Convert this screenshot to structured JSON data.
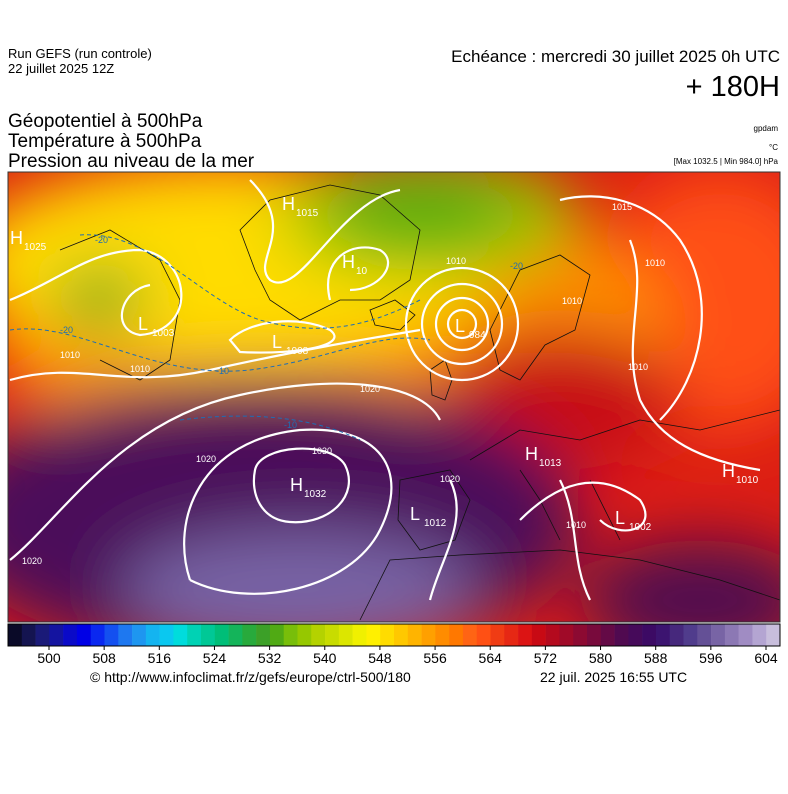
{
  "header": {
    "run": "Run GEFS (run controle)",
    "run_date": "22 juillet 2025 12Z",
    "valid": "Echéance : mercredi 30 juillet 2025 0h UTC",
    "lead": "+ 180H"
  },
  "fields": {
    "geopotential": "Géopotentiel à 500hPa",
    "temperature": "Température à 500hPa",
    "pressure": "Pression au niveau de la mer",
    "unit_geo": "gpdam",
    "unit_temp": "°C",
    "pressure_range": "[Max 1032.5 | Min 984.0] hPa"
  },
  "map": {
    "systems": [
      {
        "kind": "H",
        "value": "1015"
      },
      {
        "kind": "H",
        "value": "1025"
      },
      {
        "kind": "L",
        "value": "1003"
      },
      {
        "kind": "L",
        "value": "1008"
      },
      {
        "kind": "H",
        "value": "10"
      },
      {
        "kind": "L",
        "value": "984"
      },
      {
        "kind": "H",
        "value": "1032"
      },
      {
        "kind": "L",
        "value": "1012"
      },
      {
        "kind": "H",
        "value": "1013"
      },
      {
        "kind": "H",
        "value": "1010"
      },
      {
        "kind": "L",
        "value": "1002"
      }
    ],
    "isobar_labels": [
      "1010",
      "1020",
      "1010",
      "1010",
      "1020",
      "1030",
      "1020",
      "1020",
      "1010",
      "1010",
      "1010",
      "1010",
      "1015"
    ],
    "temperature_labels": [
      "-20",
      "-20",
      "-20",
      "-10",
      "-10"
    ]
  },
  "colorbar": {
    "ticks": [
      500,
      508,
      516,
      524,
      532,
      540,
      548,
      556,
      564,
      572,
      580,
      588,
      596,
      604
    ],
    "colors": [
      "#0a0a28",
      "#141450",
      "#1a1a78",
      "#1414a0",
      "#0a0ac8",
      "#0000e6",
      "#0a28f0",
      "#1450f0",
      "#1e78f0",
      "#1e96f0",
      "#14b4f0",
      "#0ac8f0",
      "#00dcdc",
      "#00d2b4",
      "#00c896",
      "#00be78",
      "#14b45a",
      "#28aa3c",
      "#3ca028",
      "#50aa14",
      "#78be0a",
      "#96c800",
      "#b4d200",
      "#c8dc00",
      "#dce600",
      "#f0f000",
      "#fff000",
      "#ffdc00",
      "#ffc800",
      "#ffb400",
      "#ffa000",
      "#ff8c00",
      "#ff7800",
      "#ff6414",
      "#ff5014",
      "#f03c14",
      "#e62814",
      "#dc1414",
      "#c80a14",
      "#b40a1e",
      "#a00a28",
      "#8c0a32",
      "#780a3c",
      "#640a46",
      "#500a50",
      "#460a5a",
      "#3c0a64",
      "#3c1470",
      "#46287c",
      "#503c8c",
      "#645096",
      "#7864a5",
      "#8c78b4",
      "#a08cc3",
      "#b4a5d2",
      "#c8bedc"
    ]
  },
  "footer": {
    "source": "© http://www.infoclimat.fr/z/gefs/europe/ctrl-500/180",
    "generated": "22 juil. 2025 16:55 UTC"
  }
}
